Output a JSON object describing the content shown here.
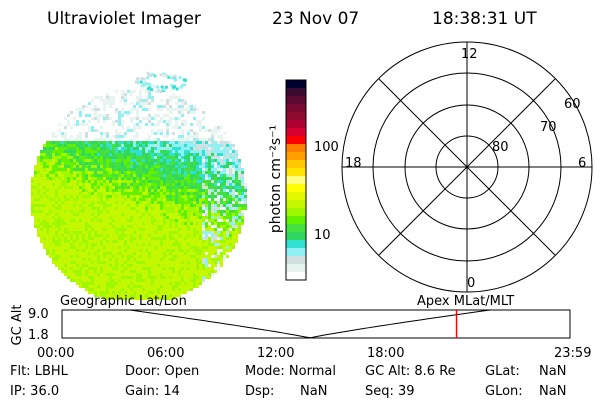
{
  "header": {
    "instrument": "Ultraviolet Imager",
    "date": "23 Nov 07",
    "time": "18:38:31 UT"
  },
  "colorbar": {
    "label": "photon cm⁻²s⁻¹",
    "ticks": [
      "100",
      "10"
    ],
    "colors": [
      "#000030",
      "#3a0a30",
      "#5a0a30",
      "#780a30",
      "#900a30",
      "#b00030",
      "#d80030",
      "#ff0000",
      "#ff8000",
      "#ffa000",
      "#ffc800",
      "#ffe400",
      "#ffff80",
      "#ffff00",
      "#e4f800",
      "#c4f800",
      "#a0f800",
      "#60f000",
      "#44e040",
      "#30d860",
      "#30e0d0",
      "#90f0f4",
      "#d0e0e0",
      "#e8f4f0",
      "#ffffff"
    ]
  },
  "polar_grid": {
    "mlt_labels": [
      "12",
      "18",
      "6",
      "0"
    ],
    "mlat_labels": [
      "60",
      "70",
      "80"
    ]
  },
  "timeline": {
    "left_title": "Geographic Lat/Lon",
    "right_title": "Apex MLat/MLT",
    "ylabel": "GC Alt",
    "y_ticks": [
      "9.0",
      "1.8"
    ],
    "x_ticks": [
      "00:00",
      "06:00",
      "12:00",
      "18:00",
      "23:59"
    ],
    "current_time_marker_hours": 18.64,
    "marker_color": "#ff0000"
  },
  "info": {
    "flt": "Flt: LBHL",
    "ip": "IP: 36.0",
    "door": "Door: Open",
    "gain": "Gain: 14",
    "mode": "Mode: Normal",
    "dsp_label": "Dsp:",
    "dsp_value": "NaN",
    "gc_alt": "GC Alt: 8.6 Re",
    "seq": "Seq: 39",
    "glat_label": "GLat:",
    "glat_value": "NaN",
    "glon_label": "GLon:",
    "glon_value": "NaN"
  }
}
